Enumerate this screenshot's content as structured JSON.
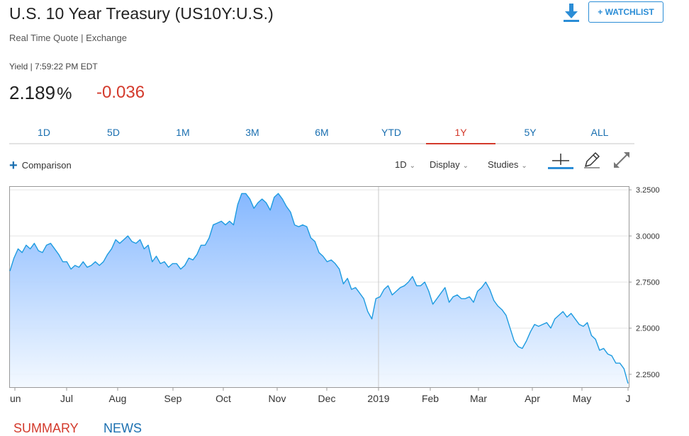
{
  "header": {
    "title": "U.S. 10 Year Treasury (US10Y:U.S.)",
    "subtitle": "Real Time Quote | Exchange",
    "watchlist_label": "+ WATCHLIST",
    "download_icon": "download-icon",
    "timestamp": "Yield | 7:59:22 PM EDT",
    "last_value": "2.189",
    "last_unit": "%",
    "change": "-0.036"
  },
  "colors": {
    "accent": "#2b8dd6",
    "down": "#d33a2c",
    "line": "#1d9be0",
    "fill_top": "#7fb4ff",
    "fill_bottom": "#f2f8ff"
  },
  "tabs": [
    {
      "label": "1D"
    },
    {
      "label": "5D"
    },
    {
      "label": "1M"
    },
    {
      "label": "3M"
    },
    {
      "label": "6M"
    },
    {
      "label": "YTD"
    },
    {
      "label": "1Y",
      "active": true
    },
    {
      "label": "5Y"
    },
    {
      "label": "ALL"
    }
  ],
  "toolbar": {
    "comparison_label": "Comparison",
    "interval_label": "1D",
    "display_label": "Display",
    "studies_label": "Studies",
    "icons": [
      "crosshair-icon",
      "pencil-icon",
      "expand-icon"
    ]
  },
  "chart_data": {
    "type": "area",
    "x_ticks": [
      "un",
      "Jul",
      "Aug",
      "Sep",
      "Oct",
      "Nov",
      "Dec",
      "2019",
      "Feb",
      "Mar",
      "Apr",
      "May",
      "J"
    ],
    "y_ticks": [
      "3.2500",
      "3.0000",
      "2.7500",
      "2.5000",
      "2.2500"
    ],
    "ylim": [
      2.18,
      3.27
    ],
    "grid": "horizontal",
    "series": [
      {
        "values": [
          2.81,
          2.88,
          2.93,
          2.91,
          2.95,
          2.93,
          2.96,
          2.92,
          2.91,
          2.95,
          2.96,
          2.93,
          2.9,
          2.86,
          2.86,
          2.82,
          2.84,
          2.83,
          2.86,
          2.83,
          2.84,
          2.86,
          2.84,
          2.86,
          2.9,
          2.93,
          2.98,
          2.96,
          2.98,
          3.0,
          2.97,
          2.96,
          2.98,
          2.93,
          2.95,
          2.86,
          2.89,
          2.85,
          2.86,
          2.83,
          2.85,
          2.85,
          2.82,
          2.84,
          2.88,
          2.87,
          2.9,
          2.95,
          2.95,
          2.99,
          3.06,
          3.07,
          3.08,
          3.06,
          3.08,
          3.06,
          3.17,
          3.23,
          3.23,
          3.2,
          3.15,
          3.18,
          3.2,
          3.18,
          3.14,
          3.21,
          3.23,
          3.2,
          3.16,
          3.13,
          3.06,
          3.05,
          3.06,
          3.05,
          2.99,
          2.97,
          2.91,
          2.89,
          2.86,
          2.87,
          2.85,
          2.82,
          2.74,
          2.77,
          2.71,
          2.72,
          2.69,
          2.66,
          2.59,
          2.55,
          2.66,
          2.67,
          2.71,
          2.73,
          2.68,
          2.7,
          2.72,
          2.73,
          2.75,
          2.78,
          2.73,
          2.73,
          2.75,
          2.7,
          2.63,
          2.66,
          2.69,
          2.72,
          2.64,
          2.67,
          2.68,
          2.66,
          2.66,
          2.67,
          2.64,
          2.7,
          2.72,
          2.75,
          2.71,
          2.65,
          2.62,
          2.6,
          2.57,
          2.5,
          2.43,
          2.4,
          2.39,
          2.43,
          2.48,
          2.52,
          2.51,
          2.52,
          2.53,
          2.5,
          2.55,
          2.57,
          2.59,
          2.56,
          2.58,
          2.55,
          2.52,
          2.51,
          2.53,
          2.46,
          2.44,
          2.38,
          2.39,
          2.36,
          2.35,
          2.31,
          2.31,
          2.28,
          2.2
        ]
      }
    ]
  },
  "bottom_tabs": {
    "summary": "SUMMARY",
    "news": "NEWS"
  }
}
